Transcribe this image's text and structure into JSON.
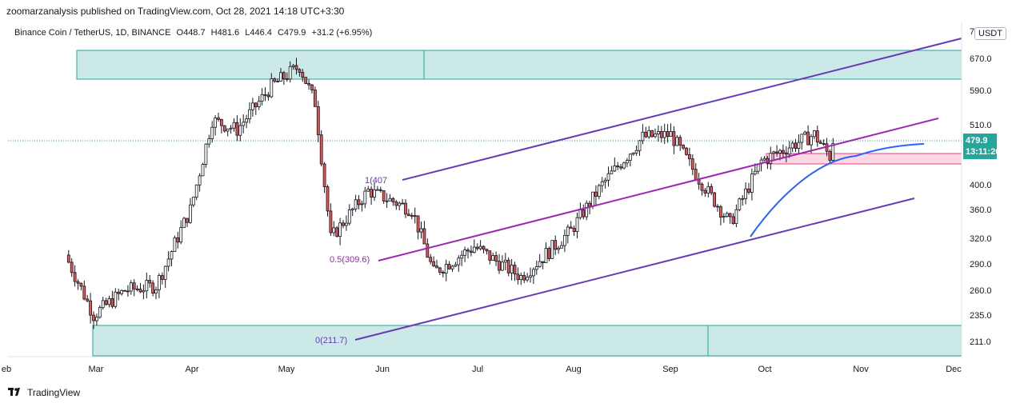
{
  "header": {
    "published": "zoomarzanalysis published on TradingView.com, Oct 28, 2021 14:18 UTC+3:30"
  },
  "symbol": {
    "name": "Binance Coin / TetherUS, 1D, BINANCE",
    "open": "O448.7",
    "high": "H481.6",
    "low": "L446.4",
    "close": "C479.9",
    "change": "+31.2 (+6.95%)"
  },
  "price_axis": {
    "currency": "USDT",
    "top_clip": "7",
    "ticks": [
      "670.0",
      "590.0",
      "510.0",
      "400.0",
      "360.0",
      "320.0",
      "290.0",
      "260.0",
      "235.0",
      "211.0"
    ]
  },
  "price_tag": {
    "price": "479.9",
    "countdown": "13:11:26"
  },
  "time_axis": {
    "ticks": [
      "eb",
      "Mar",
      "Apr",
      "May",
      "Jun",
      "Jul",
      "Aug",
      "Sep",
      "Oct",
      "Nov",
      "Dec"
    ]
  },
  "fib_labels": {
    "top": "1(407",
    "mid": "0.5(309.6)",
    "bottom": "0(211.7)"
  },
  "footer": {
    "brand": "TradingView"
  },
  "colors": {
    "up": "#26a69a",
    "down": "#ef5350",
    "candle": "#131722",
    "zone_green": "#26a69a",
    "zone_pink": "#f06292",
    "channel": "#673ab7",
    "mid_line": "#9c27b0",
    "curve": "#2962ff"
  },
  "chart_data": {
    "type": "candlestick",
    "symbol": "BNBUSDT",
    "timeframe": "1D",
    "exchange": "BINANCE",
    "y_ticks": [
      211,
      235,
      260,
      290,
      320,
      360,
      400,
      510,
      590,
      670
    ],
    "x_ticks": [
      "Mar",
      "Apr",
      "May",
      "Jun",
      "Jul",
      "Aug",
      "Sep",
      "Oct",
      "Nov",
      "Dec"
    ],
    "last_close": 479.9,
    "approx_closes": [
      {
        "x": "2021-02-24",
        "y": 300
      },
      {
        "x": "2021-03-05",
        "y": 235
      },
      {
        "x": "2021-03-15",
        "y": 260
      },
      {
        "x": "2021-03-25",
        "y": 265
      },
      {
        "x": "2021-04-05",
        "y": 360
      },
      {
        "x": "2021-04-12",
        "y": 520
      },
      {
        "x": "2021-04-20",
        "y": 500
      },
      {
        "x": "2021-05-01",
        "y": 600
      },
      {
        "x": "2021-05-10",
        "y": 650
      },
      {
        "x": "2021-05-15",
        "y": 560
      },
      {
        "x": "2021-05-20",
        "y": 320
      },
      {
        "x": "2021-06-01",
        "y": 390
      },
      {
        "x": "2021-06-15",
        "y": 360
      },
      {
        "x": "2021-06-22",
        "y": 280
      },
      {
        "x": "2021-07-05",
        "y": 310
      },
      {
        "x": "2021-07-20",
        "y": 275
      },
      {
        "x": "2021-08-05",
        "y": 330
      },
      {
        "x": "2021-08-15",
        "y": 400
      },
      {
        "x": "2021-08-28",
        "y": 485
      },
      {
        "x": "2021-09-06",
        "y": 490
      },
      {
        "x": "2021-09-15",
        "y": 410
      },
      {
        "x": "2021-09-25",
        "y": 340
      },
      {
        "x": "2021-10-05",
        "y": 440
      },
      {
        "x": "2021-10-15",
        "y": 470
      },
      {
        "x": "2021-10-22",
        "y": 490
      },
      {
        "x": "2021-10-27",
        "y": 448.7
      },
      {
        "x": "2021-10-28",
        "y": 479.9
      }
    ]
  }
}
